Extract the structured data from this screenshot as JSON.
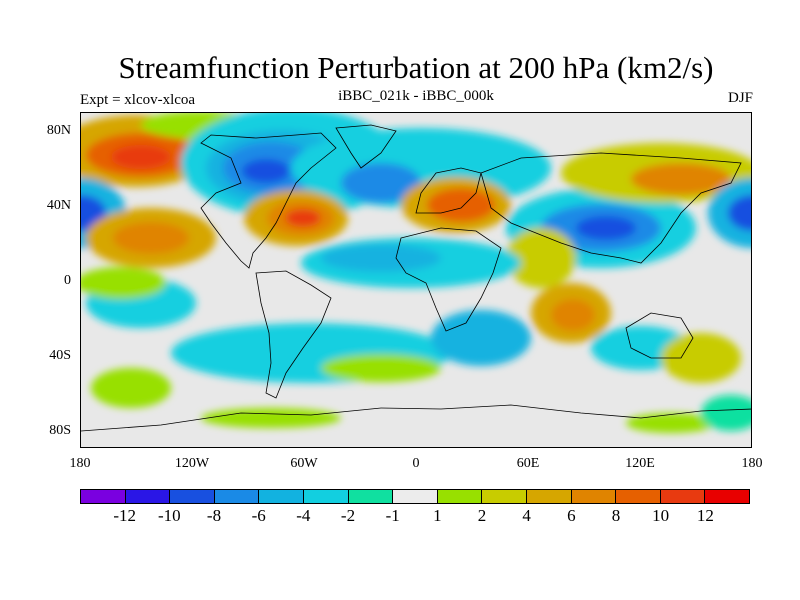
{
  "title": "Streamfunction Perturbation at 200 hPa (km2/s)",
  "experiment_label": "Expt = xlcov-xlcoa",
  "subtitle": "iBBC_021k - iBBC_000k",
  "season": "DJF",
  "y_ticks": [
    "80N",
    "40N",
    "0",
    "40S",
    "80S"
  ],
  "x_ticks": [
    "180",
    "120W",
    "60W",
    "0",
    "60E",
    "120E",
    "180"
  ],
  "colorbar": {
    "colors": [
      "#7a00e0",
      "#2a16e6",
      "#1850e0",
      "#1a8ae6",
      "#12b2e0",
      "#12cfe0",
      "#10e0a0",
      "#ececec",
      "#98e000",
      "#c8cc00",
      "#d6a600",
      "#e08400",
      "#e66000",
      "#e83a10",
      "#e80000"
    ],
    "labels": [
      "-12",
      "-10",
      "-8",
      "-6",
      "-4",
      "-2",
      "-1",
      "1",
      "2",
      "4",
      "6",
      "8",
      "10",
      "12"
    ]
  }
}
